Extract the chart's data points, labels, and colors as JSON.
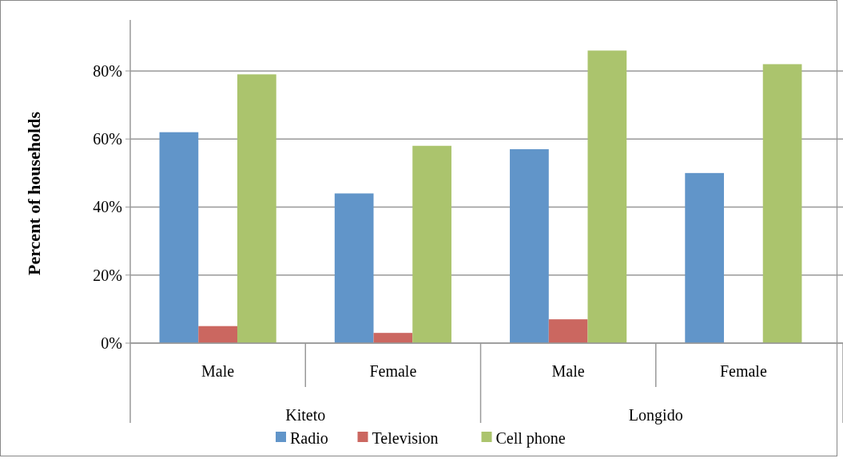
{
  "chart_data": {
    "type": "bar",
    "ylabel": "Percent of households",
    "categories": [
      "Male",
      "Female",
      "Male",
      "Female"
    ],
    "annotations": [
      "Kiteto",
      "Longido"
    ],
    "series": [
      {
        "name": "Radio",
        "color": "#6195c9",
        "values": [
          62,
          44,
          57,
          50
        ]
      },
      {
        "name": "Television",
        "color": "#cb6760",
        "values": [
          5,
          3,
          7,
          0
        ]
      },
      {
        "name": "Cell phone",
        "color": "#abc46d",
        "values": [
          79,
          58,
          86,
          82
        ]
      }
    ],
    "ylim": [
      0,
      95
    ],
    "yticks": [
      {
        "value": 0,
        "label": "0%"
      },
      {
        "value": 20,
        "label": "20%"
      },
      {
        "value": 40,
        "label": "40%"
      },
      {
        "value": 60,
        "label": "60%"
      },
      {
        "value": 80,
        "label": "80%"
      }
    ],
    "grid": "y",
    "legend": "bottom"
  }
}
